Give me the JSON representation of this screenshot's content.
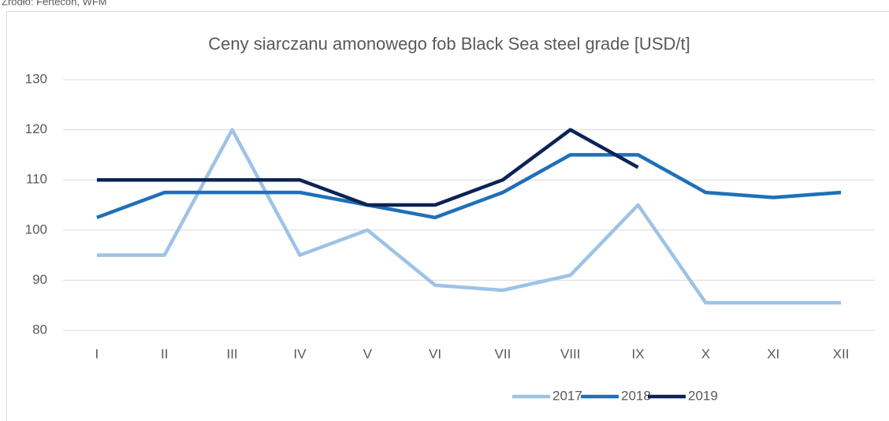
{
  "source": "Źródło: Fertecon, WFM",
  "chart_data": {
    "type": "line",
    "title": "Ceny siarczanu amonowego fob Black Sea steel grade [USD/t]",
    "categories": [
      "I",
      "II",
      "III",
      "IV",
      "V",
      "VI",
      "VII",
      "VIII",
      "IX",
      "X",
      "XI",
      "XII"
    ],
    "series": [
      {
        "name": "2017",
        "color": "#9dc3e6",
        "values": [
          95,
          95,
          120,
          95,
          100,
          89,
          88,
          91,
          105,
          85.5,
          85.5,
          85.5
        ]
      },
      {
        "name": "2018",
        "color": "#1f70b8",
        "values": [
          102.5,
          107.5,
          107.5,
          107.5,
          105,
          102.5,
          107.5,
          115,
          115,
          107.5,
          106.5,
          107.5
        ]
      },
      {
        "name": "2019",
        "color": "#0c2356",
        "values": [
          110,
          110,
          110,
          110,
          105,
          105,
          110,
          120,
          112.5,
          null,
          null,
          null
        ]
      }
    ],
    "ylim": [
      80,
      130
    ],
    "yticks": [
      80,
      90,
      100,
      110,
      120,
      130
    ],
    "grid": true,
    "legend": "bottom"
  }
}
